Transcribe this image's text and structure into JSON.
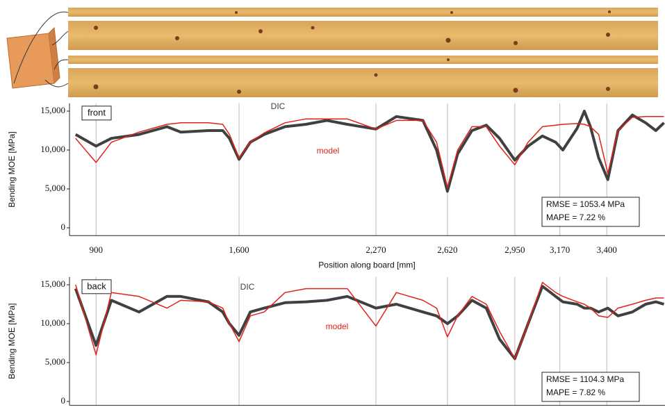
{
  "chart_data": [
    {
      "type": "line",
      "panel_label": "front",
      "ylabel": "Bending MOE [MPa]",
      "xlabel": "Position along board [mm]",
      "annotations": [
        "RMSE = 1053.4 MPa",
        "MAPE = 7.22 %"
      ],
      "xlim": [
        770,
        3685
      ],
      "ylim": [
        -1000,
        16000
      ],
      "xticks": [
        {
          "value": 900,
          "label": "900"
        },
        {
          "value": 1600,
          "label": "1,600"
        },
        {
          "value": 2270,
          "label": "2,270"
        },
        {
          "value": 2620,
          "label": "2,620"
        },
        {
          "value": 2950,
          "label": "2,950"
        },
        {
          "value": 3170,
          "label": "3,170"
        },
        {
          "value": 3400,
          "label": "3,400"
        }
      ],
      "yticks": [
        0,
        {
          "value": 5000,
          "label": "5,000"
        },
        {
          "value": 10000,
          "label": "10,000"
        },
        {
          "value": 15000,
          "label": "15,000"
        }
      ],
      "grid": true,
      "x": [
        800,
        900,
        975,
        1110,
        1247,
        1315,
        1450,
        1520,
        1553,
        1600,
        1655,
        1723,
        1825,
        1927,
        2030,
        2130,
        2270,
        2370,
        2500,
        2567,
        2620,
        2670,
        2740,
        2810,
        2875,
        2950,
        3015,
        3085,
        3150,
        3185,
        3255,
        3290,
        3320,
        3360,
        3405,
        3455,
        3525,
        3590,
        3640,
        3680
      ],
      "series": [
        {
          "name": "DIC",
          "color": "#404040",
          "values": [
            12000,
            10500,
            11500,
            12000,
            13000,
            12300,
            12500,
            12500,
            11500,
            8800,
            11000,
            12000,
            13000,
            13300,
            13800,
            13300,
            12700,
            14300,
            13800,
            10000,
            4700,
            9500,
            12500,
            13200,
            11500,
            8700,
            10500,
            11800,
            11000,
            10000,
            12800,
            15000,
            13000,
            9000,
            6200,
            12500,
            14500,
            13500,
            12500,
            13500
          ]
        },
        {
          "name": "model",
          "color": "#e0201b",
          "values": [
            11500,
            8400,
            11000,
            12300,
            13300,
            13500,
            13500,
            13300,
            12000,
            9000,
            11000,
            12200,
            13500,
            14000,
            14000,
            14000,
            12700,
            13800,
            13800,
            11000,
            5200,
            10000,
            13000,
            13000,
            10500,
            8100,
            11000,
            13000,
            13200,
            13300,
            13400,
            13300,
            13000,
            12000,
            7000,
            12500,
            14200,
            14300,
            14300,
            14300
          ]
        }
      ]
    },
    {
      "type": "line",
      "panel_label": "back",
      "ylabel": "Bending MOE [MPa]",
      "annotations": [
        "RMSE = 1104.3 MPa",
        "MAPE = 7.82 %"
      ],
      "xlim": [
        770,
        3685
      ],
      "ylim": [
        -500,
        16000
      ],
      "xticks": [
        900,
        1600,
        2270,
        2620,
        2950,
        3170,
        3400
      ],
      "yticks": [
        0,
        {
          "value": 5000,
          "label": "5,000"
        },
        {
          "value": 10000,
          "label": "10,000"
        },
        {
          "value": 15000,
          "label": "15,000"
        }
      ],
      "grid": true,
      "x": [
        800,
        900,
        975,
        1110,
        1247,
        1315,
        1450,
        1520,
        1553,
        1600,
        1655,
        1723,
        1825,
        1927,
        2030,
        2130,
        2270,
        2370,
        2500,
        2567,
        2620,
        2670,
        2740,
        2810,
        2875,
        2950,
        3015,
        3085,
        3150,
        3185,
        3255,
        3290,
        3320,
        3360,
        3405,
        3455,
        3525,
        3590,
        3640,
        3680
      ],
      "series": [
        {
          "name": "DIC",
          "color": "#404040",
          "values": [
            14500,
            7200,
            13000,
            11500,
            13500,
            13500,
            12800,
            11500,
            10000,
            8500,
            11500,
            12000,
            12700,
            12800,
            13000,
            13500,
            12000,
            12500,
            11500,
            11000,
            10000,
            11000,
            13000,
            12000,
            8000,
            5500,
            10000,
            14800,
            13500,
            12800,
            12500,
            12000,
            12000,
            11500,
            12000,
            11000,
            11500,
            12500,
            12800,
            12500
          ]
        },
        {
          "name": "model",
          "color": "#e0201b",
          "values": [
            15000,
            6000,
            14000,
            13500,
            12000,
            13000,
            12800,
            12000,
            10000,
            7700,
            11000,
            11500,
            14000,
            14500,
            14500,
            14500,
            9700,
            14000,
            13000,
            12000,
            8300,
            11000,
            13500,
            12500,
            9000,
            5500,
            10000,
            15300,
            14000,
            13500,
            12800,
            12500,
            12000,
            11000,
            10800,
            12000,
            12500,
            13000,
            13300,
            13300
          ]
        }
      ]
    }
  ]
}
